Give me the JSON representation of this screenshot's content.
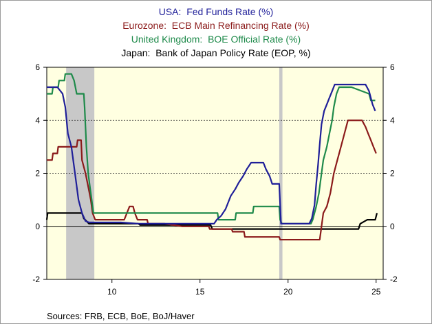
{
  "chart_data": {
    "type": "line",
    "title": "",
    "xlabel": "",
    "ylabel": "",
    "xlim": [
      6.3,
      25.4
    ],
    "ylim": [
      -2,
      6
    ],
    "yticks": [
      -2,
      0,
      2,
      4,
      6
    ],
    "ytick_labels": [
      "-2",
      "0",
      "2",
      "4",
      "6"
    ],
    "xticks": [
      10,
      15,
      20,
      25
    ],
    "xtick_labels": [
      "10",
      "15",
      "20",
      "25"
    ],
    "dashed_gridlines_y": [
      2,
      4
    ],
    "recession_bands": [
      [
        7.4,
        9.0
      ],
      [
        19.5,
        19.68
      ]
    ],
    "plot_background": "#ffffe1",
    "recession_color": "#c8c8c8",
    "legend_placement": "top-center",
    "series": [
      {
        "name": "USA:  Fed Funds Rate (%)",
        "color": "#1f1f99",
        "points": [
          [
            6.3,
            5.25
          ],
          [
            6.9,
            5.25
          ],
          [
            7.2,
            5.0
          ],
          [
            7.35,
            4.5
          ],
          [
            7.5,
            3.5
          ],
          [
            7.7,
            3.0
          ],
          [
            7.9,
            2.0
          ],
          [
            8.1,
            1.0
          ],
          [
            8.3,
            0.5
          ],
          [
            8.5,
            0.2
          ],
          [
            8.7,
            0.15
          ],
          [
            9.0,
            0.15
          ],
          [
            9.5,
            0.15
          ],
          [
            10.5,
            0.15
          ],
          [
            11.5,
            0.1
          ],
          [
            13.0,
            0.1
          ],
          [
            15.3,
            0.1
          ],
          [
            15.8,
            0.1
          ],
          [
            15.95,
            0.25
          ],
          [
            16.2,
            0.4
          ],
          [
            16.45,
            0.65
          ],
          [
            16.6,
            0.9
          ],
          [
            16.75,
            1.15
          ],
          [
            17.0,
            1.4
          ],
          [
            17.2,
            1.65
          ],
          [
            17.45,
            1.9
          ],
          [
            17.65,
            2.15
          ],
          [
            17.9,
            2.4
          ],
          [
            18.6,
            2.4
          ],
          [
            18.75,
            2.15
          ],
          [
            18.95,
            1.9
          ],
          [
            19.1,
            1.6
          ],
          [
            19.5,
            1.6
          ],
          [
            19.6,
            0.1
          ],
          [
            21.2,
            0.1
          ],
          [
            21.35,
            0.3
          ],
          [
            21.5,
            0.8
          ],
          [
            21.6,
            1.6
          ],
          [
            21.7,
            2.3
          ],
          [
            21.8,
            3.1
          ],
          [
            21.9,
            3.85
          ],
          [
            22.05,
            4.35
          ],
          [
            22.2,
            4.6
          ],
          [
            22.35,
            4.85
          ],
          [
            22.5,
            5.1
          ],
          [
            22.65,
            5.35
          ],
          [
            24.4,
            5.35
          ],
          [
            24.6,
            5.1
          ],
          [
            24.8,
            4.6
          ],
          [
            24.95,
            4.35
          ]
        ]
      },
      {
        "name": "Eurozone:  ECB Main Refinancing Rate (%)",
        "color": "#8b1a1a",
        "points": [
          [
            6.3,
            2.5
          ],
          [
            6.6,
            2.5
          ],
          [
            6.65,
            2.75
          ],
          [
            6.9,
            2.75
          ],
          [
            6.95,
            3.0
          ],
          [
            8.0,
            3.0
          ],
          [
            8.05,
            3.25
          ],
          [
            8.25,
            3.25
          ],
          [
            8.3,
            2.5
          ],
          [
            8.5,
            2.0
          ],
          [
            8.65,
            1.5
          ],
          [
            8.8,
            1.0
          ],
          [
            8.9,
            0.5
          ],
          [
            9.05,
            0.25
          ],
          [
            9.3,
            0.25
          ],
          [
            10.7,
            0.25
          ],
          [
            10.85,
            0.5
          ],
          [
            11.0,
            0.75
          ],
          [
            11.2,
            0.75
          ],
          [
            11.3,
            0.5
          ],
          [
            11.45,
            0.25
          ],
          [
            12.0,
            0.25
          ],
          [
            12.05,
            0.1
          ],
          [
            13.0,
            0.1
          ],
          [
            14.0,
            0.0
          ],
          [
            15.5,
            0.0
          ],
          [
            15.55,
            -0.1
          ],
          [
            16.8,
            -0.1
          ],
          [
            16.85,
            -0.2
          ],
          [
            17.5,
            -0.2
          ],
          [
            17.55,
            -0.4
          ],
          [
            19.5,
            -0.4
          ],
          [
            19.55,
            -0.5
          ],
          [
            21.8,
            -0.5
          ],
          [
            21.9,
            0.0
          ],
          [
            22.0,
            0.5
          ],
          [
            22.2,
            0.75
          ],
          [
            22.4,
            1.25
          ],
          [
            22.6,
            2.0
          ],
          [
            22.8,
            2.5
          ],
          [
            23.0,
            3.0
          ],
          [
            23.2,
            3.5
          ],
          [
            23.4,
            4.0
          ],
          [
            24.2,
            4.0
          ],
          [
            24.4,
            3.75
          ],
          [
            24.55,
            3.5
          ],
          [
            24.7,
            3.25
          ],
          [
            24.85,
            3.0
          ],
          [
            25.0,
            2.75
          ]
        ]
      },
      {
        "name": "United Kingdom:  BOE Official Rate (%)",
        "color": "#1e8a4a",
        "points": [
          [
            6.3,
            5.0
          ],
          [
            6.6,
            5.0
          ],
          [
            6.65,
            5.25
          ],
          [
            6.95,
            5.25
          ],
          [
            7.0,
            5.5
          ],
          [
            7.3,
            5.5
          ],
          [
            7.35,
            5.75
          ],
          [
            7.7,
            5.75
          ],
          [
            7.85,
            5.5
          ],
          [
            8.0,
            5.0
          ],
          [
            8.4,
            5.0
          ],
          [
            8.45,
            4.5
          ],
          [
            8.55,
            3.0
          ],
          [
            8.65,
            2.0
          ],
          [
            8.75,
            1.5
          ],
          [
            8.85,
            1.0
          ],
          [
            8.95,
            0.5
          ],
          [
            15.3,
            0.5
          ],
          [
            16.0,
            0.5
          ],
          [
            16.05,
            0.25
          ],
          [
            17.0,
            0.25
          ],
          [
            17.05,
            0.5
          ],
          [
            18.0,
            0.5
          ],
          [
            18.05,
            0.75
          ],
          [
            19.5,
            0.75
          ],
          [
            19.55,
            0.25
          ],
          [
            19.65,
            0.1
          ],
          [
            21.3,
            0.1
          ],
          [
            21.4,
            0.25
          ],
          [
            21.6,
            0.75
          ],
          [
            21.75,
            1.25
          ],
          [
            21.9,
            2.0
          ],
          [
            22.0,
            2.5
          ],
          [
            22.2,
            3.0
          ],
          [
            22.35,
            3.5
          ],
          [
            22.5,
            4.0
          ],
          [
            22.6,
            4.5
          ],
          [
            22.75,
            5.0
          ],
          [
            22.9,
            5.25
          ],
          [
            23.6,
            5.25
          ],
          [
            24.6,
            5.0
          ],
          [
            24.7,
            4.75
          ],
          [
            24.95,
            4.75
          ]
        ]
      },
      {
        "name": "Japan:  Bank of Japan Policy Rate (EOP, %)",
        "color": "#000000",
        "points": [
          [
            6.3,
            0.25
          ],
          [
            6.35,
            0.5
          ],
          [
            8.3,
            0.5
          ],
          [
            8.4,
            0.3
          ],
          [
            8.7,
            0.1
          ],
          [
            11.5,
            0.1
          ],
          [
            11.6,
            0.05
          ],
          [
            15.6,
            0.05
          ],
          [
            15.7,
            -0.1
          ],
          [
            24.0,
            -0.1
          ],
          [
            24.1,
            0.1
          ],
          [
            24.5,
            0.25
          ],
          [
            24.95,
            0.25
          ],
          [
            25.05,
            0.5
          ]
        ]
      }
    ]
  },
  "source_text": "Sources:  FRB, ECB, BoE, BoJ/Haver"
}
